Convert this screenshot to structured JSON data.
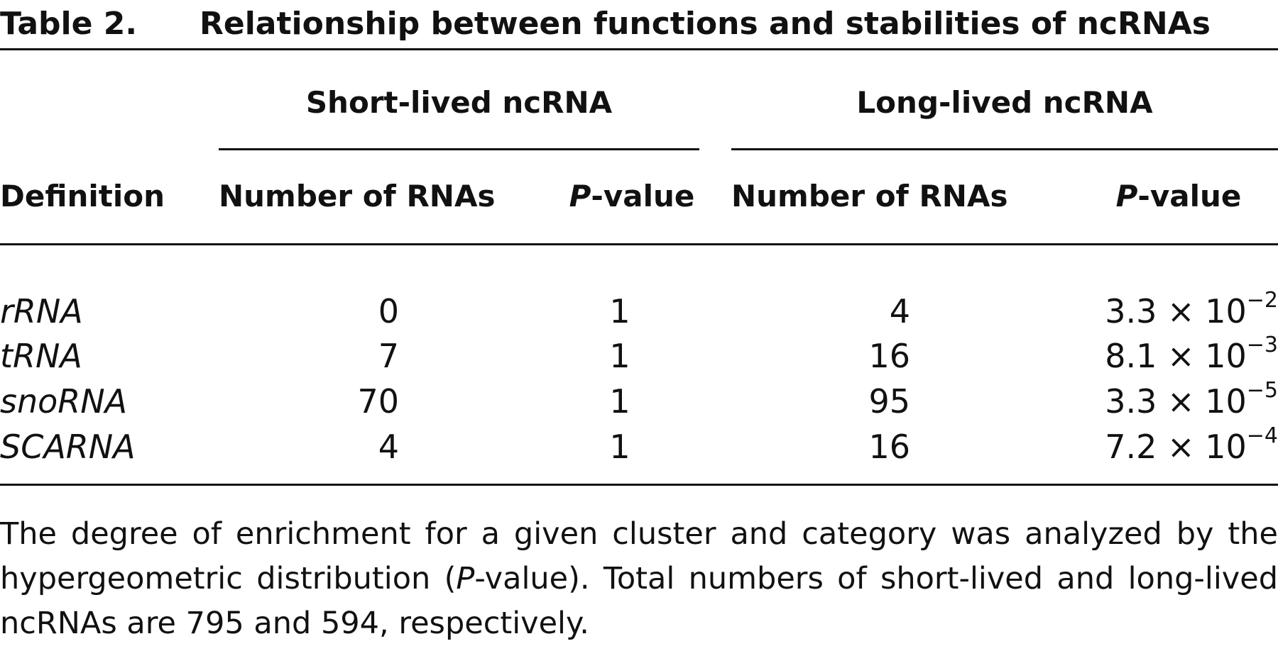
{
  "table": {
    "label": "Table 2.",
    "title": "Relationship between functions and stabilities of ncRNAs",
    "groups": [
      "Short-lived ncRNA",
      "Long-lived ncRNA"
    ],
    "columns": [
      "Definition",
      "Number of RNAs",
      "P-value",
      "Number of RNAs",
      "P-value"
    ],
    "rows": [
      [
        "rRNA",
        0,
        1,
        4,
        {
          "base": "3.3 × 10",
          "exp": "−2"
        }
      ],
      [
        "tRNA",
        7,
        1,
        16,
        {
          "base": "8.1 × 10",
          "exp": "−3"
        }
      ],
      [
        "snoRNA",
        70,
        1,
        95,
        {
          "base": "3.3 × 10",
          "exp": "−5"
        }
      ],
      [
        "SCARNA",
        4,
        1,
        16,
        {
          "base": "7.2 × 10",
          "exp": "−4"
        }
      ]
    ],
    "footnote": [
      "The degree of enrichment for a given cluster and category was analyzed by the hypergeometric distribution (",
      "P",
      "-value). Total numbers of short-lived and long-lived ncRNAs are 795 and 594, respectively."
    ]
  }
}
